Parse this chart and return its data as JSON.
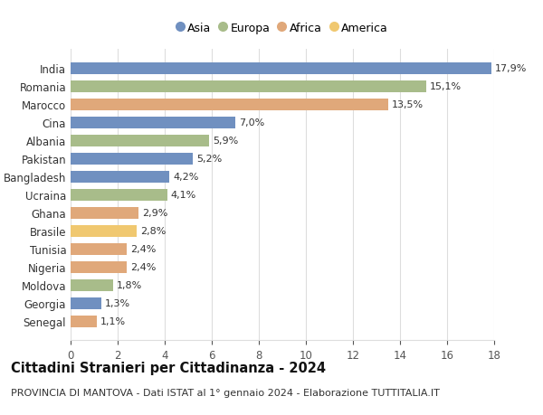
{
  "categories": [
    "India",
    "Romania",
    "Marocco",
    "Cina",
    "Albania",
    "Pakistan",
    "Bangladesh",
    "Ucraina",
    "Ghana",
    "Brasile",
    "Tunisia",
    "Nigeria",
    "Moldova",
    "Georgia",
    "Senegal"
  ],
  "values": [
    17.9,
    15.1,
    13.5,
    7.0,
    5.9,
    5.2,
    4.2,
    4.1,
    2.9,
    2.8,
    2.4,
    2.4,
    1.8,
    1.3,
    1.1
  ],
  "labels": [
    "17,9%",
    "15,1%",
    "13,5%",
    "7,0%",
    "5,9%",
    "5,2%",
    "4,2%",
    "4,1%",
    "2,9%",
    "2,8%",
    "2,4%",
    "2,4%",
    "1,8%",
    "1,3%",
    "1,1%"
  ],
  "continents": [
    "Asia",
    "Europa",
    "Africa",
    "Asia",
    "Europa",
    "Asia",
    "Asia",
    "Europa",
    "Africa",
    "America",
    "Africa",
    "Africa",
    "Europa",
    "Asia",
    "Africa"
  ],
  "continent_colors": {
    "Asia": "#7090c0",
    "Europa": "#a8bc8a",
    "Africa": "#e0a87a",
    "America": "#f0c870"
  },
  "legend_order": [
    "Asia",
    "Europa",
    "Africa",
    "America"
  ],
  "title": "Cittadini Stranieri per Cittadinanza - 2024",
  "subtitle": "PROVINCIA DI MANTOVA - Dati ISTAT al 1° gennaio 2024 - Elaborazione TUTTITALIA.IT",
  "xlim": [
    0,
    18
  ],
  "xticks": [
    0,
    2,
    4,
    6,
    8,
    10,
    12,
    14,
    16,
    18
  ],
  "background_color": "#ffffff",
  "grid_color": "#dddddd",
  "bar_height": 0.65,
  "label_fontsize": 8.0,
  "title_fontsize": 10.5,
  "subtitle_fontsize": 8.0,
  "ytick_fontsize": 8.5,
  "xtick_fontsize": 8.5
}
